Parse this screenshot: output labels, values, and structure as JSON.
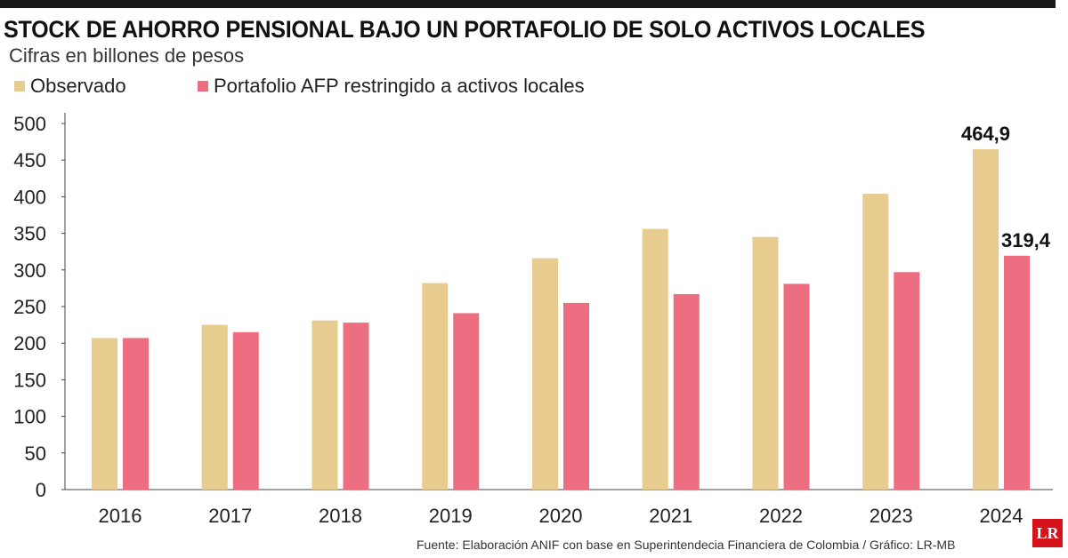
{
  "header": {
    "title": "STOCK DE AHORRO PENSIONAL BAJO UN PORTAFOLIO DE SOLO ACTIVOS LOCALES",
    "subtitle": "Cifras en billones de pesos"
  },
  "footer": {
    "source": "Fuente: Elaboración ANIF con base en Superintendecia Financiera de Colombia / Gráfico: LR-MB",
    "logo_text": "LR"
  },
  "colors": {
    "observado": "#E8CB8E",
    "restringido": "#EC6E80",
    "axis": "#444444"
  },
  "chart_data": {
    "type": "bar",
    "title": "STOCK DE AHORRO PENSIONAL BAJO UN PORTAFOLIO DE SOLO ACTIVOS LOCALES",
    "ylabel": "Cifras en billones de pesos",
    "xlabel": "",
    "ylim": [
      0,
      500
    ],
    "yticks": [
      0,
      50,
      100,
      150,
      200,
      250,
      300,
      350,
      400,
      450,
      500
    ],
    "grid": false,
    "legend_position": "top-left",
    "categories": [
      "2016",
      "2017",
      "2018",
      "2019",
      "2020",
      "2021",
      "2022",
      "2023",
      "2024"
    ],
    "series": [
      {
        "name": "Observado",
        "color": "#E8CB8E",
        "values": [
          207,
          225,
          231,
          282,
          316,
          356,
          345,
          404,
          464.9
        ]
      },
      {
        "name": "Portafolio AFP restringido a activos locales",
        "color": "#EC6E80",
        "values": [
          207,
          215,
          228,
          241,
          255,
          267,
          281,
          297,
          319.4
        ]
      }
    ],
    "annotations": [
      {
        "series": 0,
        "category": "2024",
        "label": "464,9"
      },
      {
        "series": 1,
        "category": "2024",
        "label": "319,4"
      }
    ]
  }
}
